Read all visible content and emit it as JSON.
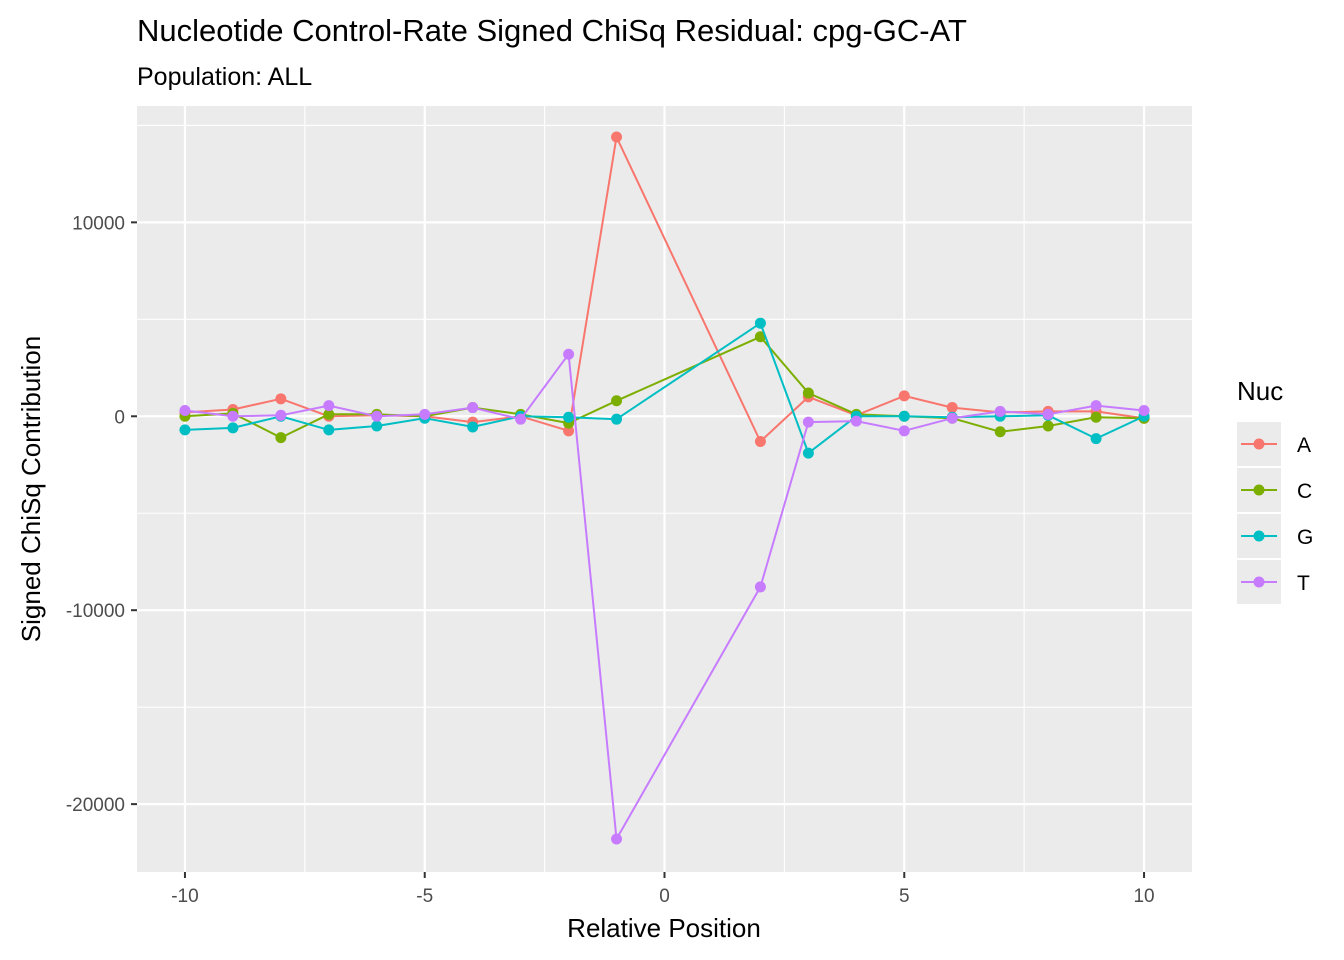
{
  "chart_data": {
    "type": "line",
    "title": "Nucleotide Control-Rate Signed ChiSq Residual: cpg-GC-AT",
    "subtitle": "Population: ALL",
    "xlabel": "Relative Position",
    "ylabel": "Signed ChiSq Contribution",
    "xlim": [
      -11,
      11
    ],
    "ylim": [
      -23500,
      16000
    ],
    "x_ticks": [
      -10,
      -5,
      0,
      5,
      10
    ],
    "x_tick_labels": [
      "-10",
      "-5",
      "0",
      "5",
      "10"
    ],
    "y_ticks": [
      -20000,
      -10000,
      0,
      10000
    ],
    "y_tick_labels": [
      "-20000",
      "-10000",
      "0",
      "10000"
    ],
    "grid": true,
    "legend": {
      "title": "Nuc",
      "placement": "right"
    },
    "x": [
      -10,
      -9,
      -8,
      -7,
      -6,
      -5,
      -4,
      -3,
      -2,
      -1,
      2,
      3,
      4,
      5,
      6,
      7,
      8,
      9,
      10
    ],
    "series": [
      {
        "name": "A",
        "color": "#F8766D",
        "values": [
          200,
          350,
          900,
          0,
          50,
          0,
          -300,
          0,
          -750,
          14400,
          -1300,
          1000,
          50,
          1050,
          450,
          200,
          250,
          250,
          -100
        ]
      },
      {
        "name": "C",
        "color": "#7CAE00",
        "values": [
          0,
          150,
          -1100,
          100,
          100,
          0,
          450,
          100,
          -350,
          800,
          4100,
          1200,
          100,
          0,
          -100,
          -800,
          -500,
          -50,
          -100
        ]
      },
      {
        "name": "G",
        "color": "#00BFC4",
        "values": [
          -700,
          -600,
          0,
          -700,
          -500,
          -100,
          -550,
          0,
          -50,
          -150,
          4800,
          -1900,
          0,
          0,
          -50,
          0,
          50,
          -1150,
          0
        ]
      },
      {
        "name": "T",
        "color": "#C77CFF",
        "values": [
          300,
          0,
          50,
          550,
          0,
          100,
          450,
          -150,
          3200,
          -21800,
          -8800,
          -300,
          -250,
          -750,
          -100,
          250,
          100,
          550,
          300
        ]
      }
    ]
  }
}
